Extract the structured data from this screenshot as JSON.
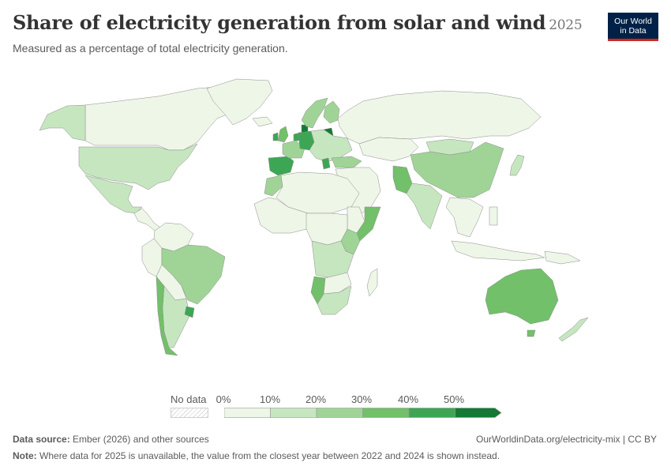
{
  "header": {
    "title": "Share of electricity generation from solar and wind",
    "year": "2025",
    "subtitle": "Measured as a percentage of total electricity generation."
  },
  "logo": {
    "line1": "Our World",
    "line2": "in Data"
  },
  "legend": {
    "no_data_label": "No data",
    "ticks": [
      "0%",
      "10%",
      "20%",
      "30%",
      "40%",
      "50%"
    ],
    "bins": [
      {
        "min": 0,
        "max": 10,
        "color": "#eef6e8"
      },
      {
        "min": 10,
        "max": 20,
        "color": "#c6e6c0"
      },
      {
        "min": 20,
        "max": 30,
        "color": "#a0d497"
      },
      {
        "min": 30,
        "max": 40,
        "color": "#72c06a"
      },
      {
        "min": 40,
        "max": 50,
        "color": "#3da654"
      },
      {
        "min": 50,
        "max": 60,
        "color": "#137a35"
      }
    ]
  },
  "footer": {
    "source_label": "Data source:",
    "source_text": "Ember (2026) and other sources",
    "url": "OurWorldinData.org/electricity-mix | CC BY",
    "note_label": "Note:",
    "note_text": "Where data for 2025 is unavailable, the value from the closest year between 2022 and 2024 is shown instead."
  },
  "map_data": {
    "unit": "%",
    "regions": [
      {
        "name": "Canada",
        "bin": 0
      },
      {
        "name": "Alaska",
        "bin": 1
      },
      {
        "name": "Greenland",
        "bin": 0
      },
      {
        "name": "United States",
        "bin": 1
      },
      {
        "name": "Mexico",
        "bin": 1
      },
      {
        "name": "Central America",
        "bin": 0
      },
      {
        "name": "Colombia / Venezuela",
        "bin": 0
      },
      {
        "name": "Peru / Ecuador",
        "bin": 0
      },
      {
        "name": "Brazil",
        "bin": 2
      },
      {
        "name": "Bolivia / Paraguay",
        "bin": 0
      },
      {
        "name": "Chile",
        "bin": 3
      },
      {
        "name": "Argentina",
        "bin": 1
      },
      {
        "name": "Uruguay",
        "bin": 4
      },
      {
        "name": "Iceland",
        "bin": 0
      },
      {
        "name": "United Kingdom",
        "bin": 3
      },
      {
        "name": "Ireland",
        "bin": 4
      },
      {
        "name": "Spain / Portugal",
        "bin": 4
      },
      {
        "name": "France",
        "bin": 2
      },
      {
        "name": "Germany",
        "bin": 4
      },
      {
        "name": "Denmark",
        "bin": 5
      },
      {
        "name": "Netherlands",
        "bin": 4
      },
      {
        "name": "Lithuania",
        "bin": 5
      },
      {
        "name": "Scandinavia",
        "bin": 2
      },
      {
        "name": "Finland",
        "bin": 2
      },
      {
        "name": "Eastern Europe",
        "bin": 1
      },
      {
        "name": "Greece",
        "bin": 4
      },
      {
        "name": "Turkey",
        "bin": 2
      },
      {
        "name": "Russia",
        "bin": 0
      },
      {
        "name": "Central Asia",
        "bin": 0
      },
      {
        "name": "Middle East",
        "bin": 0
      },
      {
        "name": "Pakistan",
        "bin": 3
      },
      {
        "name": "India",
        "bin": 1
      },
      {
        "name": "China",
        "bin": 2
      },
      {
        "name": "Mongolia",
        "bin": 1
      },
      {
        "name": "Japan",
        "bin": 1
      },
      {
        "name": "Southeast Asia",
        "bin": 0
      },
      {
        "name": "Indonesia",
        "bin": 0
      },
      {
        "name": "Philippines",
        "bin": 0
      },
      {
        "name": "Morocco",
        "bin": 2
      },
      {
        "name": "North Africa",
        "bin": 0
      },
      {
        "name": "West Africa",
        "bin": 0
      },
      {
        "name": "Central Africa",
        "bin": 0
      },
      {
        "name": "Kenya",
        "bin": 2
      },
      {
        "name": "Somalia",
        "bin": 3
      },
      {
        "name": "Ethiopia",
        "bin": 0
      },
      {
        "name": "Angola / Zambia",
        "bin": 1
      },
      {
        "name": "Namibia",
        "bin": 3
      },
      {
        "name": "Botswana / Zimbabwe",
        "bin": 0
      },
      {
        "name": "South Africa",
        "bin": 1
      },
      {
        "name": "Madagascar",
        "bin": 0
      },
      {
        "name": "Australia",
        "bin": 3
      },
      {
        "name": "Tasmania",
        "bin": 3
      },
      {
        "name": "New Zealand",
        "bin": 1
      },
      {
        "name": "Papua New Guinea",
        "bin": 0
      }
    ]
  }
}
